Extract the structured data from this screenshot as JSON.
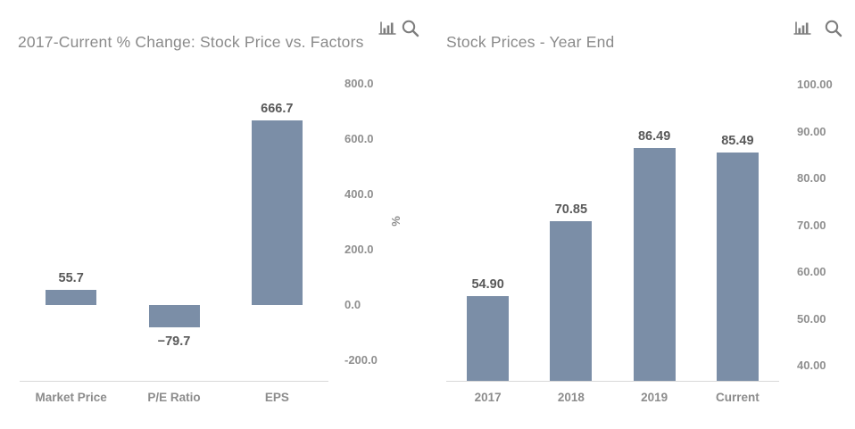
{
  "icons": {
    "chart_type": "bar-chart-icon",
    "zoom": "magnifier-icon"
  },
  "accent_colors": {
    "bar_fill": "#7b8ea7",
    "axis_line": "#d9d9d9",
    "title_text": "#8a8a8a",
    "label_text": "#595959",
    "tick_text": "#8f8f8f"
  },
  "chart_data": [
    {
      "type": "bar",
      "title": "2017-Current % Change: Stock Price vs. Factors",
      "categories": [
        "Market Price",
        "P/E Ratio",
        "EPS"
      ],
      "values": [
        55.7,
        -79.7,
        666.7
      ],
      "value_labels": [
        "55.7",
        "−79.7",
        "666.7"
      ],
      "xlabel": "",
      "ylabel": "%",
      "yticks": [
        800,
        600,
        400,
        200,
        0,
        -200
      ],
      "ytick_labels": [
        "800.0",
        "600.0",
        "400.0",
        "200.0",
        "0.0",
        "-200.0"
      ],
      "ylim": [
        -275,
        880
      ],
      "grid": false,
      "legend": false,
      "bar_color": "#7b8ea7"
    },
    {
      "type": "bar",
      "title": "Stock Prices - Year End",
      "categories": [
        "2017",
        "2018",
        "2019",
        "Current"
      ],
      "values": [
        54.9,
        70.85,
        86.49,
        85.49
      ],
      "value_labels": [
        "54.90",
        "70.85",
        "86.49",
        "85.49"
      ],
      "xlabel": "",
      "ylabel": "",
      "yticks": [
        100,
        90,
        80,
        70,
        60,
        50,
        40
      ],
      "ytick_labels": [
        "100.00",
        "90.00",
        "80.00",
        "70.00",
        "60.00",
        "50.00",
        "40.00"
      ],
      "ylim": [
        36.8,
        103
      ],
      "grid": false,
      "legend": false,
      "bar_color": "#7b8ea7"
    }
  ]
}
